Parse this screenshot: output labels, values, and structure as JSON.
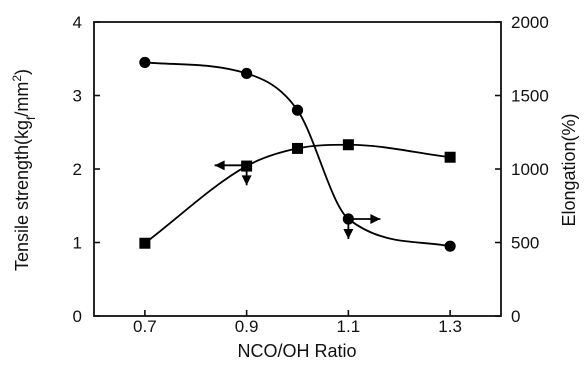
{
  "chart_data": {
    "type": "line",
    "title": "",
    "xlabel": "NCO/OH Ratio",
    "ylabel_left": "Tensile strength(kg_f/mm^2)",
    "ylabel_left_parts": {
      "main": "Tensile strength(kg",
      "subscript": "f",
      "middle": "/mm",
      "superscript": "2",
      "end": ")"
    },
    "ylabel_right": "Elongation(%)",
    "xlim": [
      0.6,
      1.4
    ],
    "ylim_left": [
      0,
      4
    ],
    "ylim_right": [
      0,
      2000
    ],
    "x_ticks": [
      "0.7",
      "0.9",
      "1.1",
      "1.3"
    ],
    "y_left_ticks": [
      "0",
      "1",
      "2",
      "3",
      "4"
    ],
    "y_right_ticks": [
      "0",
      "500",
      "1000",
      "1500",
      "2000"
    ],
    "grid": false,
    "series": [
      {
        "axis": "left",
        "marker": "circle",
        "points": [
          {
            "x": 0.7,
            "y": 3.45
          },
          {
            "x": 0.9,
            "y": 3.3
          },
          {
            "x": 1.0,
            "y": 2.8
          },
          {
            "x": 1.1,
            "y": 1.32
          },
          {
            "x": 1.3,
            "y": 0.95
          }
        ]
      },
      {
        "axis": "right",
        "marker": "square",
        "points": [
          {
            "x": 0.7,
            "y": 495
          },
          {
            "x": 0.9,
            "y": 1020
          },
          {
            "x": 1.0,
            "y": 1140
          },
          {
            "x": 1.1,
            "y": 1165
          },
          {
            "x": 1.3,
            "y": 1080
          }
        ]
      }
    ],
    "annotations": [
      {
        "x": 0.9,
        "y": 2.05,
        "axis": "left",
        "type": "axis-reference-arrows",
        "horizontal": "left",
        "vertical": "down"
      },
      {
        "x": 1.1,
        "y": 1.32,
        "axis": "left",
        "type": "axis-reference-arrows",
        "horizontal": "right",
        "vertical": "down"
      }
    ],
    "style": {
      "line_color": "#000000",
      "marker_color": "#000000",
      "background_color": "#ffffff"
    }
  }
}
